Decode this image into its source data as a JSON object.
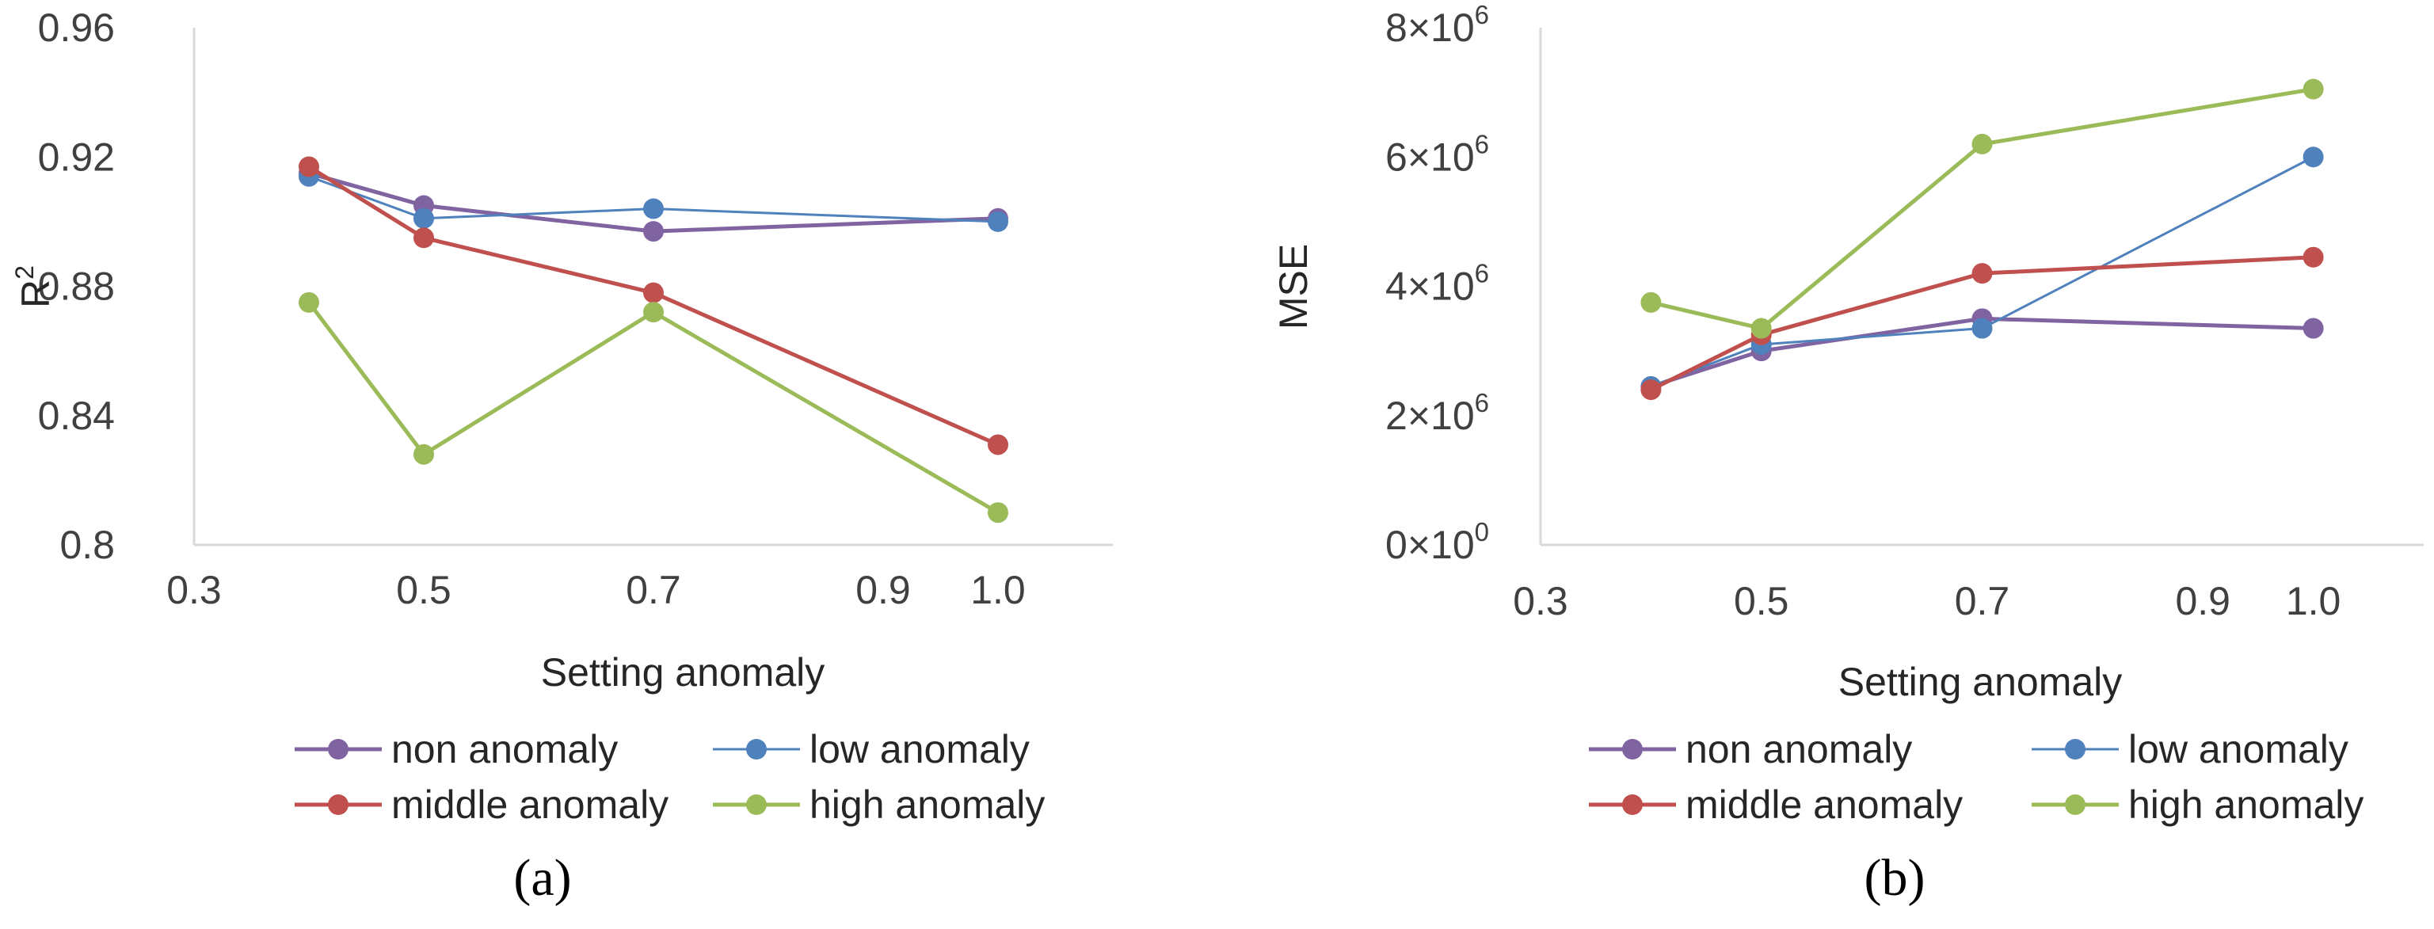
{
  "series_meta": [
    {
      "key": "non",
      "color": "#8064A2"
    },
    {
      "key": "low",
      "color": "#4F81BD"
    },
    {
      "key": "middle",
      "color": "#C0504D"
    },
    {
      "key": "high",
      "color": "#9BBB59"
    }
  ],
  "chart_data": [
    {
      "type": "line",
      "panel_label": "(a)",
      "xlabel": "Setting anomaly",
      "ylabel": "R",
      "ylabel_superscript": "2",
      "xlim": [
        0.3,
        1.1
      ],
      "ylim": [
        0.8,
        0.96
      ],
      "x_ticks": [
        {
          "value": 0.3,
          "label": "0.3"
        },
        {
          "value": 0.5,
          "label": "0.5"
        },
        {
          "value": 0.7,
          "label": "0.7"
        },
        {
          "value": 0.9,
          "label": "0.9"
        },
        {
          "value": 1.0,
          "label": "1.0"
        }
      ],
      "y_ticks": [
        {
          "value": 0.8,
          "label": "0.8"
        },
        {
          "value": 0.84,
          "label": "0.84"
        },
        {
          "value": 0.88,
          "label": "0.88"
        },
        {
          "value": 0.92,
          "label": "0.92"
        },
        {
          "value": 0.96,
          "label": "0.96"
        }
      ],
      "x": [
        0.4,
        0.5,
        0.7,
        1.0
      ],
      "series": [
        {
          "key": "non",
          "name": "non anomaly",
          "values": [
            0.915,
            0.905,
            0.897,
            0.901
          ]
        },
        {
          "key": "low",
          "name": "low anomaly",
          "values": [
            0.914,
            0.901,
            0.904,
            0.9
          ]
        },
        {
          "key": "middle",
          "name": "middle anomaly",
          "values": [
            0.917,
            0.895,
            0.878,
            0.831
          ]
        },
        {
          "key": "high",
          "name": "high anomaly",
          "values": [
            0.875,
            0.828,
            0.872,
            0.81
          ]
        }
      ]
    },
    {
      "type": "line",
      "panel_label": "(b)",
      "xlabel": "Setting anomaly",
      "ylabel": "MSE",
      "ylabel_superscript": "",
      "xlim": [
        0.3,
        1.1
      ],
      "ylim": [
        0,
        8000000
      ],
      "x_ticks": [
        {
          "value": 0.3,
          "label": "0.3"
        },
        {
          "value": 0.5,
          "label": "0.5"
        },
        {
          "value": 0.7,
          "label": "0.7"
        },
        {
          "value": 0.9,
          "label": "0.9"
        },
        {
          "value": 1.0,
          "label": "1.0"
        }
      ],
      "y_ticks": [
        {
          "value": 0,
          "mantissa": "0",
          "times": "×10",
          "exp": "0"
        },
        {
          "value": 2000000,
          "mantissa": "2",
          "times": "×10",
          "exp": "6"
        },
        {
          "value": 4000000,
          "mantissa": "4",
          "times": "×10",
          "exp": "6"
        },
        {
          "value": 6000000,
          "mantissa": "6",
          "times": "×10",
          "exp": "6"
        },
        {
          "value": 8000000,
          "mantissa": "8",
          "times": "×10",
          "exp": "6"
        }
      ],
      "x": [
        0.4,
        0.5,
        0.7,
        1.0
      ],
      "series": [
        {
          "key": "non",
          "name": "non anomaly",
          "values": [
            2450000,
            3000000,
            3500000,
            3350000
          ]
        },
        {
          "key": "low",
          "name": "low anomaly",
          "values": [
            2450000,
            3100000,
            3350000,
            6000000
          ]
        },
        {
          "key": "middle",
          "name": "middle anomaly",
          "values": [
            2400000,
            3250000,
            4200000,
            4450000
          ]
        },
        {
          "key": "high",
          "name": "high anomaly",
          "values": [
            3750000,
            3350000,
            6200000,
            7050000
          ]
        }
      ]
    }
  ]
}
